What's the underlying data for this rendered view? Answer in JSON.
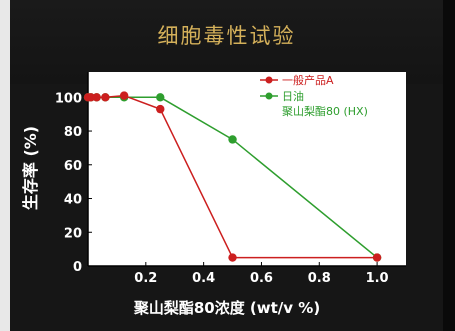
{
  "chart_data": {
    "type": "line",
    "title": "细胞毒性试验",
    "xlabel": "聚山梨酯80浓度 (wt/v %)",
    "ylabel": "生存率 (%)",
    "xlim": [
      0,
      1.1
    ],
    "ylim": [
      0,
      115
    ],
    "x_ticks": [
      {
        "value": 0.2,
        "label": "0.2"
      },
      {
        "value": 0.4,
        "label": "0.4"
      },
      {
        "value": 0.6,
        "label": "0.6"
      },
      {
        "value": 0.8,
        "label": "0.8"
      },
      {
        "value": 1.0,
        "label": "1.0"
      }
    ],
    "y_ticks": [
      {
        "value": 0,
        "label": "0"
      },
      {
        "value": 20,
        "label": "20"
      },
      {
        "value": 40,
        "label": "40"
      },
      {
        "value": 60,
        "label": "60"
      },
      {
        "value": 80,
        "label": "80"
      },
      {
        "value": 100,
        "label": "100"
      }
    ],
    "grid": false,
    "legend_position": "top-right",
    "series": [
      {
        "name": "一般产品A",
        "color": "#cc1f1f",
        "points": [
          {
            "x": 0.0,
            "y": 100
          },
          {
            "x": 0.01,
            "y": 100
          },
          {
            "x": 0.03,
            "y": 100
          },
          {
            "x": 0.06,
            "y": 100
          },
          {
            "x": 0.125,
            "y": 101
          },
          {
            "x": 0.25,
            "y": 93
          },
          {
            "x": 0.5,
            "y": 5
          },
          {
            "x": 1.0,
            "y": 5
          }
        ]
      },
      {
        "name_lines": [
          "日油",
          "聚山梨酯80 (HX)"
        ],
        "color": "#2e9e2e",
        "points": [
          {
            "x": 0.0,
            "y": 100
          },
          {
            "x": 0.01,
            "y": 100
          },
          {
            "x": 0.03,
            "y": 100
          },
          {
            "x": 0.06,
            "y": 100
          },
          {
            "x": 0.125,
            "y": 100
          },
          {
            "x": 0.25,
            "y": 100
          },
          {
            "x": 0.5,
            "y": 75
          },
          {
            "x": 1.0,
            "y": 5
          }
        ]
      }
    ]
  }
}
